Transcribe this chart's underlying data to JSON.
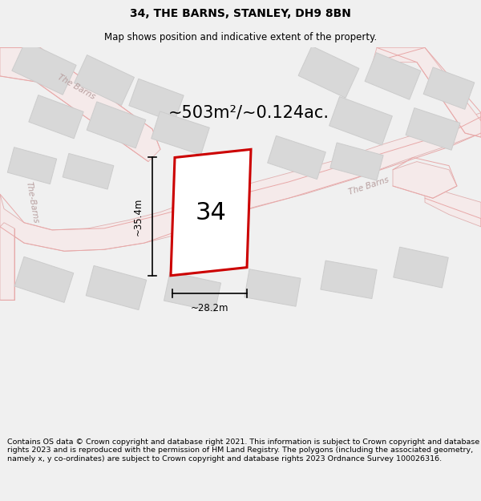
{
  "title": "34, THE BARNS, STANLEY, DH9 8BN",
  "subtitle": "Map shows position and indicative extent of the property.",
  "area_label": "~503m²/~0.124ac.",
  "plot_number": "34",
  "dim_width": "~28.2m",
  "dim_height": "~35.4m",
  "footer": "Contains OS data © Crown copyright and database right 2021. This information is subject to Crown copyright and database rights 2023 and is reproduced with the permission of HM Land Registry. The polygons (including the associated geometry, namely x, y co-ordinates) are subject to Crown copyright and database rights 2023 Ordnance Survey 100026316.",
  "bg_color": "#f0f0f0",
  "map_bg": "#ffffff",
  "road_line_color": "#e8a8a8",
  "road_outline_color": "#d8c0c0",
  "building_fill": "#d8d8d8",
  "building_edge": "#cccccc",
  "plot_line_color": "#cc0000",
  "road_label_color": "#b8a0a0",
  "title_fontsize": 10,
  "subtitle_fontsize": 8.5,
  "area_fontsize": 15,
  "dim_fontsize": 8.5,
  "plot_num_fontsize": 22,
  "footer_fontsize": 6.8
}
